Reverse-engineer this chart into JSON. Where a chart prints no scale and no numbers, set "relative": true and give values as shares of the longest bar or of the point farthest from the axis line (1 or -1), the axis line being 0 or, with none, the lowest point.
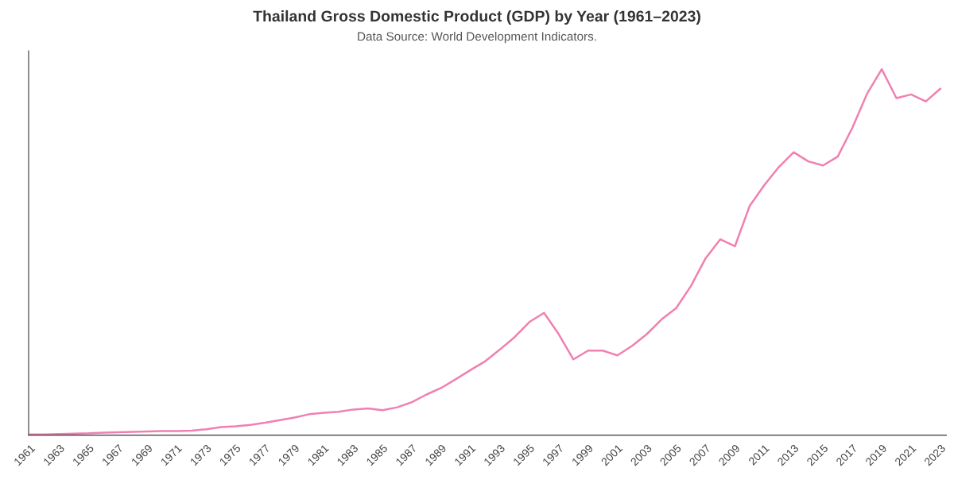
{
  "chart_data": {
    "type": "line",
    "title": "Thailand Gross Domestic Product (GDP) by Year (1961–2023)",
    "subtitle": "Data Source: World Development Indicators.",
    "categories": [
      "1961",
      null,
      "1963",
      null,
      "1965",
      null,
      "1967",
      null,
      "1969",
      null,
      "1971",
      null,
      "1973",
      null,
      "1975",
      null,
      "1977",
      null,
      "1979",
      null,
      "1981",
      null,
      "1983",
      null,
      "1985",
      null,
      "1987",
      null,
      "1989",
      null,
      "1991",
      null,
      "1993",
      null,
      "1995",
      null,
      "1997",
      null,
      "1999",
      null,
      "2001",
      null,
      "2003",
      null,
      "2005",
      null,
      "2007",
      null,
      "2009",
      null,
      "2011",
      null,
      "2013",
      null,
      "2015",
      null,
      "2017",
      null,
      "2019",
      null,
      "2021",
      null,
      "2023"
    ],
    "relative": true,
    "series": [
      {
        "color": "#f080b0",
        "values": [
          0.002,
          0.002,
          0.003,
          0.004,
          0.005,
          0.007,
          0.008,
          0.009,
          0.01,
          0.011,
          0.011,
          0.012,
          0.016,
          0.022,
          0.024,
          0.028,
          0.034,
          0.041,
          0.048,
          0.057,
          0.061,
          0.064,
          0.07,
          0.073,
          0.068,
          0.076,
          0.09,
          0.111,
          0.129,
          0.153,
          0.178,
          0.202,
          0.234,
          0.268,
          0.309,
          0.334,
          0.276,
          0.207,
          0.231,
          0.231,
          0.218,
          0.244,
          0.276,
          0.316,
          0.347,
          0.407,
          0.483,
          0.535,
          0.516,
          0.626,
          0.683,
          0.733,
          0.773,
          0.748,
          0.737,
          0.761,
          0.84,
          0.933,
          1,
          0.921,
          0.931,
          0.912,
          0.947
        ]
      }
    ],
    "grid": false,
    "legend": false
  }
}
